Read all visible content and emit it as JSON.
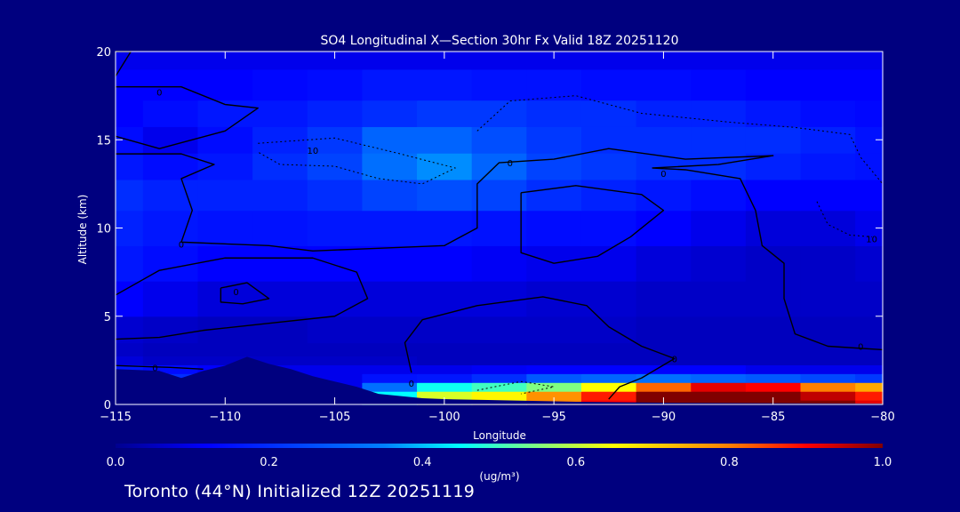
{
  "footer": "Toronto (44°N) Initialized 12Z 20251119",
  "colors": {
    "background": "#00007f",
    "frame": "#ffffff",
    "contour": "#000000"
  },
  "colormap_stops": [
    [
      0.0,
      "#00008f"
    ],
    [
      0.12,
      "#0000ff"
    ],
    [
      0.35,
      "#0080ff"
    ],
    [
      0.45,
      "#00ffff"
    ],
    [
      0.55,
      "#80ff80"
    ],
    [
      0.65,
      "#ffff00"
    ],
    [
      0.8,
      "#ff8000"
    ],
    [
      0.9,
      "#ff0000"
    ],
    [
      1.0,
      "#800000"
    ]
  ],
  "chart_data": {
    "type": "heatmap",
    "title": "SO4 Longitudinal X—Section 30hr  Fx Valid 18Z 20251120",
    "xlabel": "Longitude",
    "ylabel": "Altitude (km)",
    "xlim": [
      -115,
      -80
    ],
    "ylim": [
      0,
      20
    ],
    "xticks": [
      -115,
      -110,
      -105,
      -100,
      -95,
      -90,
      -85,
      -80
    ],
    "xtick_labels": [
      "−115",
      "−110",
      "−105",
      "−100",
      "−95",
      "−90",
      "−85",
      "−80"
    ],
    "yticks": [
      0,
      5,
      10,
      15,
      20
    ],
    "ytick_labels": [
      "0",
      "5",
      "10",
      "15",
      "20"
    ],
    "colorbar": {
      "label": "(ug/m³)",
      "range": [
        0.0,
        1.0
      ],
      "ticks": [
        0.0,
        0.2,
        0.4,
        0.6,
        0.8,
        1.0
      ],
      "tick_labels": [
        "0.0",
        "0.2",
        "0.4",
        "0.6",
        "0.8",
        "1.0"
      ]
    },
    "field": {
      "x": [
        -115,
        -112.5,
        -110,
        -107.5,
        -105,
        -102.5,
        -100,
        -97.5,
        -95,
        -92.5,
        -90,
        -87.5,
        -85,
        -82.5,
        -80
      ],
      "y": [
        0,
        0.5,
        1,
        1.5,
        2,
        2.5,
        3,
        4,
        6,
        8,
        10,
        12,
        13.5,
        15,
        16.5,
        18,
        20
      ],
      "values": [
        [
          0.1,
          0.1,
          0.1,
          0.1,
          0.1,
          0.42,
          0.6,
          0.68,
          0.8,
          0.9,
          1.0,
          1.0,
          1.0,
          1.0,
          0.92
        ],
        [
          0.1,
          0.1,
          0.1,
          0.1,
          0.12,
          0.45,
          0.62,
          0.66,
          0.78,
          0.88,
          1.0,
          1.0,
          1.0,
          0.95,
          0.88
        ],
        [
          0.12,
          0.1,
          0.12,
          0.1,
          0.1,
          0.32,
          0.46,
          0.5,
          0.55,
          0.65,
          0.82,
          0.92,
          0.9,
          0.8,
          0.75
        ],
        [
          0.28,
          0.2,
          0.12,
          0.1,
          0.1,
          0.15,
          0.16,
          0.2,
          0.28,
          0.3,
          0.32,
          0.3,
          0.28,
          0.25,
          0.22
        ],
        [
          0.16,
          0.14,
          0.12,
          0.1,
          0.1,
          0.1,
          0.1,
          0.11,
          0.12,
          0.12,
          0.12,
          0.12,
          0.1,
          0.1,
          0.1
        ],
        [
          0.08,
          0.06,
          0.06,
          0.06,
          0.06,
          0.06,
          0.05,
          0.05,
          0.05,
          0.05,
          0.05,
          0.05,
          0.05,
          0.05,
          0.05
        ],
        [
          0.06,
          0.05,
          0.05,
          0.05,
          0.05,
          0.05,
          0.05,
          0.05,
          0.05,
          0.05,
          0.05,
          0.05,
          0.05,
          0.05,
          0.05
        ],
        [
          0.07,
          0.06,
          0.05,
          0.05,
          0.06,
          0.06,
          0.06,
          0.06,
          0.06,
          0.06,
          0.05,
          0.05,
          0.05,
          0.05,
          0.05
        ],
        [
          0.12,
          0.1,
          0.08,
          0.08,
          0.08,
          0.08,
          0.08,
          0.08,
          0.07,
          0.07,
          0.06,
          0.06,
          0.06,
          0.06,
          0.06
        ],
        [
          0.16,
          0.14,
          0.12,
          0.12,
          0.12,
          0.12,
          0.12,
          0.11,
          0.1,
          0.1,
          0.08,
          0.07,
          0.06,
          0.06,
          0.07
        ],
        [
          0.18,
          0.16,
          0.15,
          0.15,
          0.16,
          0.16,
          0.16,
          0.15,
          0.14,
          0.14,
          0.12,
          0.1,
          0.08,
          0.08,
          0.1
        ],
        [
          0.2,
          0.18,
          0.18,
          0.18,
          0.2,
          0.24,
          0.26,
          0.24,
          0.2,
          0.18,
          0.16,
          0.14,
          0.12,
          0.12,
          0.12
        ],
        [
          0.16,
          0.14,
          0.16,
          0.2,
          0.24,
          0.32,
          0.36,
          0.3,
          0.24,
          0.22,
          0.2,
          0.2,
          0.18,
          0.16,
          0.15
        ],
        [
          0.14,
          0.1,
          0.14,
          0.18,
          0.22,
          0.3,
          0.3,
          0.26,
          0.22,
          0.2,
          0.2,
          0.2,
          0.2,
          0.18,
          0.15
        ],
        [
          0.12,
          0.14,
          0.16,
          0.16,
          0.18,
          0.2,
          0.22,
          0.22,
          0.2,
          0.2,
          0.18,
          0.18,
          0.16,
          0.14,
          0.13
        ],
        [
          0.12,
          0.12,
          0.12,
          0.13,
          0.14,
          0.16,
          0.16,
          0.15,
          0.15,
          0.14,
          0.14,
          0.13,
          0.12,
          0.12,
          0.12
        ],
        [
          0.1,
          0.1,
          0.1,
          0.1,
          0.1,
          0.1,
          0.1,
          0.1,
          0.1,
          0.1,
          0.1,
          0.1,
          0.1,
          0.1,
          0.1
        ]
      ]
    },
    "terrain_km": [
      [
        -115,
        2.0
      ],
      [
        -113,
        1.9
      ],
      [
        -112,
        1.5
      ],
      [
        -111,
        1.9
      ],
      [
        -110,
        2.2
      ],
      [
        -109,
        2.7
      ],
      [
        -108,
        2.3
      ],
      [
        -107,
        2.0
      ],
      [
        -106,
        1.6
      ],
      [
        -105,
        1.3
      ],
      [
        -104,
        1.0
      ],
      [
        -103,
        0.6
      ],
      [
        -101,
        0.35
      ],
      [
        -100,
        0.3
      ],
      [
        -98,
        0.25
      ],
      [
        -96,
        0.2
      ],
      [
        -94,
        0.15
      ],
      [
        -90,
        0.1
      ],
      [
        -80,
        0.05
      ]
    ],
    "contour_labels": [
      {
        "text": "0",
        "x": -113.0,
        "y": 17.7
      },
      {
        "text": "0",
        "x": -113.2,
        "y": 2.1
      },
      {
        "text": "0",
        "x": -112.0,
        "y": 9.1
      },
      {
        "text": "0",
        "x": -109.5,
        "y": 6.4
      },
      {
        "text": "10",
        "x": -106.0,
        "y": 14.4
      },
      {
        "text": "0",
        "x": -97.0,
        "y": 13.7
      },
      {
        "text": "0",
        "x": -90.0,
        "y": 13.1
      },
      {
        "text": "0",
        "x": -89.5,
        "y": 2.6
      },
      {
        "text": "0",
        "x": -101.5,
        "y": 1.2
      },
      {
        "text": "0",
        "x": -81.0,
        "y": 3.3
      },
      {
        "text": "10",
        "x": -80.5,
        "y": 9.4
      }
    ],
    "contours_solid": [
      [
        [
          -115,
          18.0
        ],
        [
          -112,
          18.0
        ],
        [
          -110,
          17.0
        ],
        [
          -108.5,
          16.8
        ],
        [
          -110,
          15.5
        ],
        [
          -113,
          14.5
        ],
        [
          -115,
          15.2
        ]
      ],
      [
        [
          -115,
          14.2
        ],
        [
          -112,
          14.2
        ],
        [
          -110.5,
          13.6
        ],
        [
          -112,
          12.8
        ],
        [
          -111.5,
          11.0
        ],
        [
          -112,
          9.2
        ],
        [
          -108,
          9.0
        ],
        [
          -106,
          8.7
        ],
        [
          -104,
          8.8
        ],
        [
          -100,
          9.0
        ],
        [
          -98.5,
          10.0
        ],
        [
          -98.5,
          12.5
        ],
        [
          -97.5,
          13.7
        ],
        [
          -95,
          13.9
        ],
        [
          -92.5,
          14.5
        ],
        [
          -89,
          13.9
        ],
        [
          -85,
          14.1
        ],
        [
          -87.5,
          13.6
        ],
        [
          -90.5,
          13.4
        ],
        [
          -89,
          13.3
        ],
        [
          -86.5,
          12.8
        ],
        [
          -85.8,
          11.0
        ],
        [
          -85.5,
          9.0
        ],
        [
          -84.5,
          8.0
        ],
        [
          -84.5,
          6.0
        ],
        [
          -84.0,
          4.0
        ],
        [
          -82.5,
          3.3
        ],
        [
          -80,
          3.1
        ]
      ],
      [
        [
          -115,
          6.2
        ],
        [
          -113,
          7.6
        ],
        [
          -110,
          8.3
        ],
        [
          -106,
          8.3
        ],
        [
          -104,
          7.5
        ],
        [
          -103.5,
          6.0
        ],
        [
          -105,
          5.0
        ],
        [
          -108,
          4.6
        ],
        [
          -111,
          4.2
        ],
        [
          -113,
          3.8
        ],
        [
          -115,
          3.7
        ]
      ],
      [
        [
          -110.2,
          6.6
        ],
        [
          -109.0,
          6.9
        ],
        [
          -108.0,
          6.0
        ],
        [
          -109.2,
          5.7
        ],
        [
          -110.2,
          5.8
        ],
        [
          -110.2,
          6.6
        ]
      ],
      [
        [
          -96.5,
          12.0
        ],
        [
          -94,
          12.4
        ],
        [
          -91,
          11.9
        ],
        [
          -90,
          11.0
        ],
        [
          -91.5,
          9.5
        ],
        [
          -93,
          8.4
        ],
        [
          -95,
          8.0
        ],
        [
          -96.5,
          8.6
        ],
        [
          -96.5,
          10.5
        ],
        [
          -96.5,
          12.0
        ]
      ],
      [
        [
          -101.5,
          1.8
        ],
        [
          -101.8,
          3.5
        ],
        [
          -101,
          4.8
        ],
        [
          -98.5,
          5.6
        ],
        [
          -95.5,
          6.1
        ],
        [
          -93.5,
          5.6
        ],
        [
          -92.5,
          4.4
        ],
        [
          -91,
          3.3
        ],
        [
          -89.5,
          2.6
        ],
        [
          -91,
          1.5
        ],
        [
          -92,
          1.0
        ],
        [
          -92.5,
          0.3
        ]
      ],
      [
        [
          -115,
          2.2
        ],
        [
          -112.5,
          2.1
        ],
        [
          -111,
          2.0
        ]
      ],
      [
        [
          -115,
          20.0
        ],
        [
          -114.3,
          20.0
        ],
        [
          -115,
          18.6
        ]
      ]
    ],
    "contours_dashed": [
      [
        [
          -108.5,
          14.8
        ],
        [
          -105,
          15.1
        ],
        [
          -102,
          14.2
        ],
        [
          -99.5,
          13.4
        ],
        [
          -101,
          12.5
        ],
        [
          -103,
          12.8
        ],
        [
          -105,
          13.5
        ],
        [
          -107.5,
          13.6
        ],
        [
          -108.5,
          14.3
        ]
      ],
      [
        [
          -98.5,
          15.5
        ],
        [
          -97,
          17.2
        ],
        [
          -94,
          17.5
        ],
        [
          -91,
          16.5
        ],
        [
          -87,
          16.0
        ],
        [
          -84,
          15.7
        ],
        [
          -81.5,
          15.3
        ],
        [
          -81.0,
          14.0
        ],
        [
          -80,
          12.5
        ]
      ],
      [
        [
          -83,
          11.5
        ],
        [
          -82.5,
          10.2
        ],
        [
          -81.5,
          9.6
        ],
        [
          -80.5,
          9.5
        ]
      ],
      [
        [
          -98.5,
          0.8
        ],
        [
          -96.5,
          1.3
        ],
        [
          -95,
          1.0
        ],
        [
          -96.5,
          0.6
        ]
      ]
    ]
  }
}
